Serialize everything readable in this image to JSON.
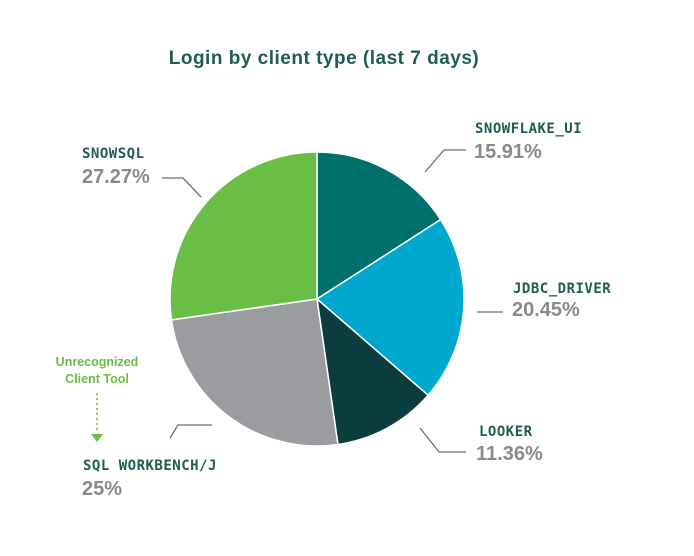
{
  "chart_data": {
    "type": "pie",
    "title": "Login by client type (last 7 days)",
    "slices": [
      {
        "label": "SNOWFLAKE_UI",
        "value": 15.91,
        "display": "15.91%",
        "color": "#00706c"
      },
      {
        "label": "JDBC_DRIVER",
        "value": 20.45,
        "display": "20.45%",
        "color": "#00a8cf"
      },
      {
        "label": "LOOKER",
        "value": 11.36,
        "display": "11.36%",
        "color": "#0b3d3f"
      },
      {
        "label": "SQL WORKBENCH/J",
        "value": 25,
        "display": "25%",
        "color": "#9b9ca0"
      },
      {
        "label": "SNOWSQL",
        "value": 27.27,
        "display": "27.27%",
        "color": "#6abd45"
      }
    ],
    "start_angle": "12 o'clock",
    "direction": "clockwise",
    "annotation": {
      "lines": [
        "Unrecognized",
        "Client Tool"
      ],
      "color": "#6abd45",
      "points_to": "SQL WORKBENCH/J"
    }
  },
  "colors": {
    "title": "#1f5c54",
    "label_name": "#1f5c54",
    "label_percent": "#8a8a8a",
    "leader_line": "#6d6d6d"
  }
}
